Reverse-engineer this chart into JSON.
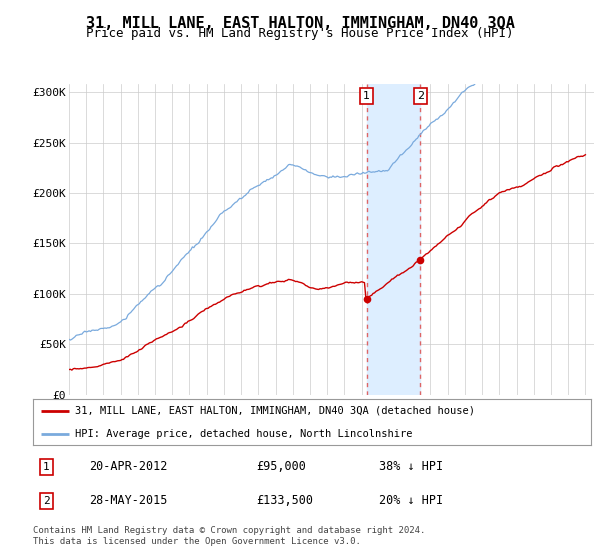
{
  "title": "31, MILL LANE, EAST HALTON, IMMINGHAM, DN40 3QA",
  "subtitle": "Price paid vs. HM Land Registry's House Price Index (HPI)",
  "title_fontsize": 11,
  "subtitle_fontsize": 9,
  "ylabel_ticks": [
    "£0",
    "£50K",
    "£100K",
    "£150K",
    "£200K",
    "£250K",
    "£300K"
  ],
  "ytick_values": [
    0,
    50000,
    100000,
    150000,
    200000,
    250000,
    300000
  ],
  "ylim": [
    0,
    308000
  ],
  "xlim_start": 1995.0,
  "xlim_end": 2025.5,
  "legend_line1": "31, MILL LANE, EAST HALTON, IMMINGHAM, DN40 3QA (detached house)",
  "legend_line2": "HPI: Average price, detached house, North Lincolnshire",
  "transaction1_date": "20-APR-2012",
  "transaction1_price": "£95,000",
  "transaction1_hpi": "38% ↓ HPI",
  "transaction1_x": 2012.29,
  "transaction1_y": 95000,
  "transaction2_date": "28-MAY-2015",
  "transaction2_price": "£133,500",
  "transaction2_hpi": "20% ↓ HPI",
  "transaction2_x": 2015.41,
  "transaction2_y": 133500,
  "shaded_region_start": 2012.29,
  "shaded_region_end": 2015.41,
  "footnote": "Contains HM Land Registry data © Crown copyright and database right 2024.\nThis data is licensed under the Open Government Licence v3.0.",
  "hpi_color": "#7aaadd",
  "price_color": "#cc0000",
  "dot_color": "#cc0000",
  "shade_color": "#ddeeff",
  "vline_color": "#dd6666",
  "background_color": "#ffffff",
  "grid_color": "#cccccc"
}
